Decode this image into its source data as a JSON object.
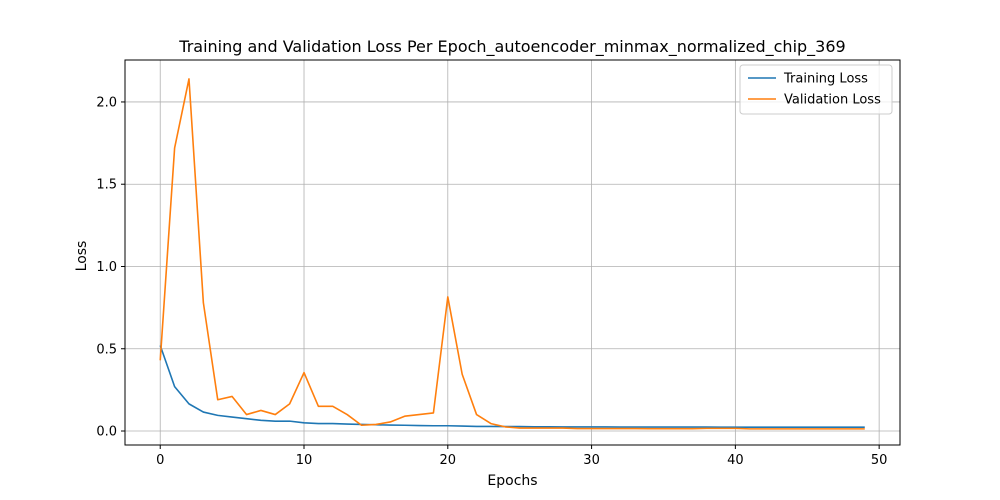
{
  "chart_data": {
    "type": "line",
    "title": "Training and Validation Loss Per Epoch_autoencoder_minmax_normalized_chip_369",
    "xlabel": "Epochs",
    "ylabel": "Loss",
    "xlim": [
      -2.45,
      51.45
    ],
    "ylim": [
      -0.085,
      2.255
    ],
    "xticks": [
      0,
      10,
      20,
      30,
      40,
      50
    ],
    "yticks": [
      0.0,
      0.5,
      1.0,
      1.5,
      2.0
    ],
    "xtick_labels": [
      "0",
      "10",
      "20",
      "30",
      "40",
      "50"
    ],
    "ytick_labels": [
      "0.0",
      "0.5",
      "1.0",
      "1.5",
      "2.0"
    ],
    "grid": true,
    "legend_position": "top-right",
    "x": [
      0,
      1,
      2,
      3,
      4,
      5,
      6,
      7,
      8,
      9,
      10,
      11,
      12,
      13,
      14,
      15,
      16,
      17,
      18,
      19,
      20,
      21,
      22,
      23,
      24,
      25,
      26,
      27,
      28,
      29,
      30,
      31,
      32,
      33,
      34,
      35,
      36,
      37,
      38,
      39,
      40,
      41,
      42,
      43,
      44,
      45,
      46,
      47,
      48,
      49
    ],
    "series": [
      {
        "name": "Training Loss",
        "color": "#1f77b4",
        "values": [
          0.52,
          0.27,
          0.165,
          0.115,
          0.095,
          0.085,
          0.075,
          0.065,
          0.06,
          0.06,
          0.05,
          0.045,
          0.045,
          0.042,
          0.04,
          0.038,
          0.036,
          0.035,
          0.033,
          0.032,
          0.032,
          0.03,
          0.028,
          0.028,
          0.027,
          0.027,
          0.026,
          0.026,
          0.025,
          0.025,
          0.025,
          0.025,
          0.024,
          0.024,
          0.024,
          0.024,
          0.024,
          0.024,
          0.024,
          0.023,
          0.023,
          0.023,
          0.023,
          0.023,
          0.023,
          0.023,
          0.023,
          0.023,
          0.023,
          0.023
        ]
      },
      {
        "name": "Validation Loss",
        "color": "#ff7f0e",
        "values": [
          0.43,
          1.72,
          2.14,
          0.78,
          0.19,
          0.21,
          0.1,
          0.125,
          0.1,
          0.165,
          0.355,
          0.15,
          0.15,
          0.1,
          0.035,
          0.04,
          0.055,
          0.09,
          0.1,
          0.11,
          0.815,
          0.345,
          0.1,
          0.045,
          0.025,
          0.018,
          0.018,
          0.018,
          0.018,
          0.015,
          0.015,
          0.015,
          0.015,
          0.015,
          0.014,
          0.014,
          0.014,
          0.014,
          0.016,
          0.016,
          0.016,
          0.013,
          0.013,
          0.013,
          0.013,
          0.013,
          0.013,
          0.013,
          0.013,
          0.013
        ]
      }
    ]
  }
}
